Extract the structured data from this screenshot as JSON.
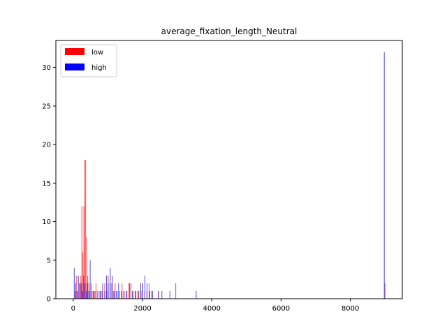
{
  "chart_data": {
    "type": "bar",
    "title": "average_fixation_length_Neutral",
    "xlabel": "",
    "ylabel": "",
    "xlim": [
      -500,
      9500
    ],
    "ylim": [
      0,
      33.5
    ],
    "xticks": [
      0,
      2000,
      4000,
      6000,
      8000
    ],
    "xtick_labels": [
      "0",
      "2000",
      "4000",
      "6000",
      "8000"
    ],
    "yticks": [
      0,
      5,
      10,
      15,
      20,
      25,
      30
    ],
    "ytick_labels": [
      "0",
      "5",
      "10",
      "15",
      "20",
      "25",
      "30"
    ],
    "grid": false,
    "legend_position": "top-left",
    "bin_width": 15,
    "series": [
      {
        "name": "low",
        "color": "#ff0000",
        "opacity": 0.7,
        "bins": [
          [
            40,
            1
          ],
          [
            80,
            3
          ],
          [
            130,
            1
          ],
          [
            170,
            2
          ],
          [
            210,
            3
          ],
          [
            240,
            12
          ],
          [
            270,
            6
          ],
          [
            300,
            12
          ],
          [
            320,
            18
          ],
          [
            350,
            18
          ],
          [
            380,
            8
          ],
          [
            410,
            3
          ],
          [
            440,
            2
          ],
          [
            470,
            1
          ],
          [
            520,
            2
          ],
          [
            560,
            1
          ],
          [
            600,
            1
          ],
          [
            650,
            2
          ],
          [
            700,
            1
          ],
          [
            760,
            1
          ],
          [
            820,
            1
          ],
          [
            900,
            2
          ],
          [
            960,
            1
          ],
          [
            1000,
            3
          ],
          [
            1050,
            2
          ],
          [
            1100,
            2
          ],
          [
            1150,
            1
          ],
          [
            1200,
            2
          ],
          [
            1260,
            1
          ],
          [
            1330,
            1
          ],
          [
            1400,
            2
          ],
          [
            1450,
            1
          ],
          [
            1520,
            1
          ],
          [
            1600,
            2
          ],
          [
            1660,
            2
          ],
          [
            1720,
            1
          ],
          [
            1800,
            1
          ],
          [
            1880,
            1
          ],
          [
            1950,
            1
          ],
          [
            2000,
            2
          ],
          [
            2060,
            1
          ],
          [
            2120,
            1
          ],
          [
            2180,
            2
          ],
          [
            2250,
            1
          ],
          [
            2450,
            1
          ],
          [
            2950,
            2
          ],
          [
            8990,
            2
          ]
        ]
      },
      {
        "name": "high",
        "color": "#0000ff",
        "opacity": 0.7,
        "bins": [
          [
            20,
            4
          ],
          [
            60,
            2
          ],
          [
            100,
            1
          ],
          [
            140,
            3
          ],
          [
            190,
            2
          ],
          [
            230,
            2
          ],
          [
            260,
            1
          ],
          [
            290,
            3
          ],
          [
            330,
            2
          ],
          [
            370,
            1
          ],
          [
            400,
            2
          ],
          [
            440,
            1
          ],
          [
            480,
            5
          ],
          [
            520,
            1
          ],
          [
            580,
            1
          ],
          [
            640,
            1
          ],
          [
            700,
            1
          ],
          [
            780,
            1
          ],
          [
            840,
            2
          ],
          [
            900,
            1
          ],
          [
            950,
            3
          ],
          [
            1000,
            2
          ],
          [
            1060,
            4
          ],
          [
            1120,
            3
          ],
          [
            1180,
            1
          ],
          [
            1240,
            1
          ],
          [
            1300,
            2
          ],
          [
            1380,
            1
          ],
          [
            1460,
            1
          ],
          [
            1540,
            1
          ],
          [
            1620,
            2
          ],
          [
            1700,
            1
          ],
          [
            1780,
            1
          ],
          [
            1860,
            1
          ],
          [
            1940,
            2
          ],
          [
            2000,
            2
          ],
          [
            2060,
            3
          ],
          [
            2120,
            2
          ],
          [
            2200,
            1
          ],
          [
            2280,
            1
          ],
          [
            2450,
            1
          ],
          [
            2550,
            1
          ],
          [
            2780,
            1
          ],
          [
            3540,
            1
          ],
          [
            8970,
            32
          ]
        ]
      }
    ]
  }
}
